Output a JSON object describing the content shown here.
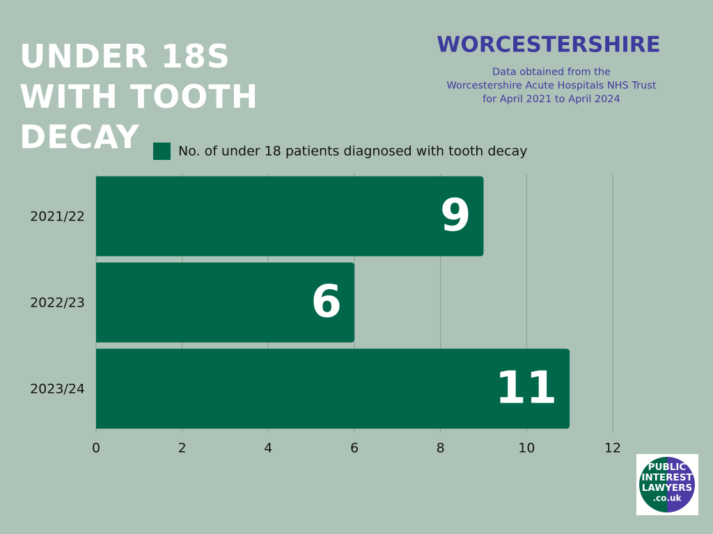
{
  "chart_data": {
    "type": "hbar",
    "title": "UNDER 18S WITH TOOTH DECAY",
    "subtitle": "WORCESTERSHIRE",
    "note": [
      "Data obtained from the",
      "Worcestershire Acute Hospitals NHS Trust",
      "for April 2021 to April 2024"
    ],
    "categories": [
      "2021/22",
      "2022/23",
      "2023/24"
    ],
    "series": [
      {
        "name": "No. of under 18 patients diagnosed with tooth decay",
        "color": "#00674a",
        "values": [
          9,
          6,
          11
        ]
      }
    ],
    "xlim": [
      0,
      12
    ],
    "xticks": [
      0,
      2,
      4,
      6,
      8,
      10,
      12
    ],
    "grid": true,
    "legend": "top"
  },
  "logo": {
    "lines": [
      "PUBLIC",
      "INTEREST",
      "LAWYERS",
      ".co.uk"
    ]
  }
}
